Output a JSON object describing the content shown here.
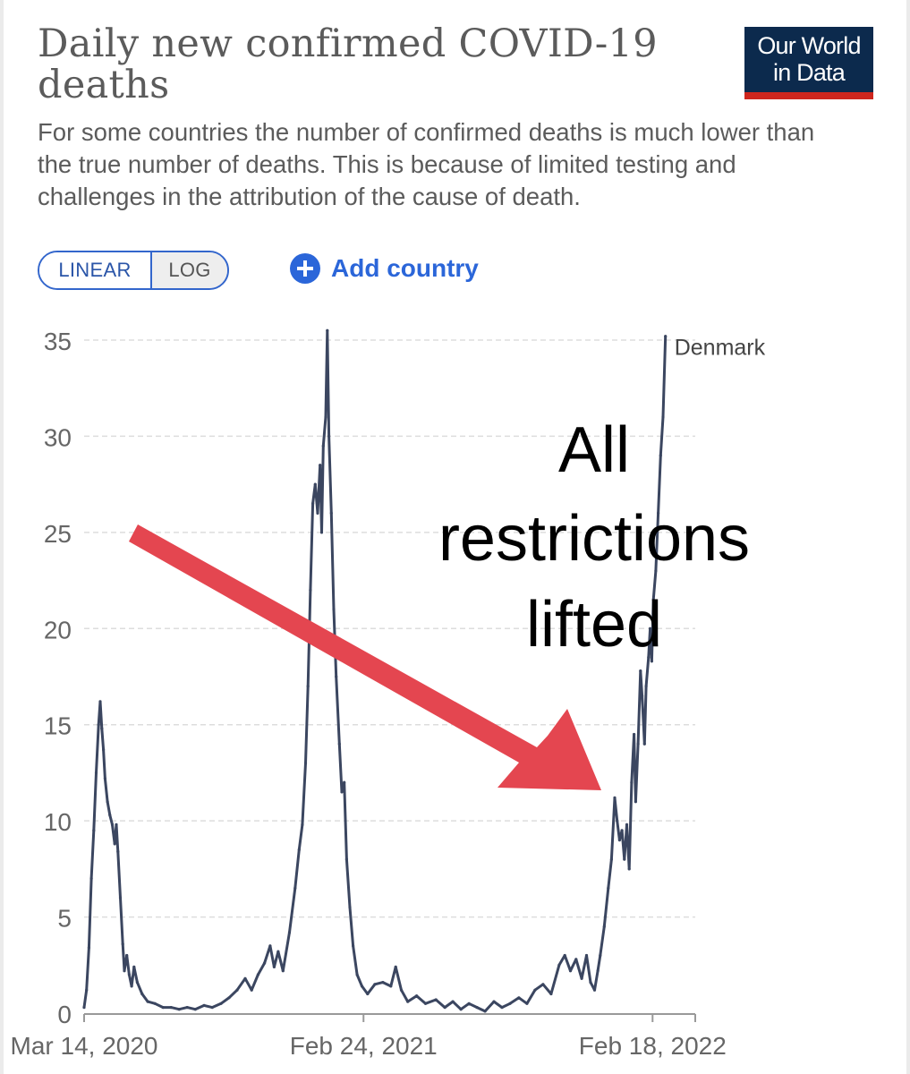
{
  "header": {
    "title": "Daily new confirmed COVID-19 deaths",
    "subtitle": "For some countries the number of confirmed deaths is much lower than the true number of deaths. This is because of limited testing and challenges in the attribution of the cause of death.",
    "logo_line1": "Our World",
    "logo_line2": "in Data"
  },
  "controls": {
    "linear_label": "LINEAR",
    "log_label": "LOG",
    "add_country_label": "Add country",
    "selected_scale": "LINEAR"
  },
  "annotation": {
    "line1": "All",
    "line2": "restrictions",
    "line3": "lifted"
  },
  "colors": {
    "series": "#3b4660",
    "arrow": "#e44650",
    "grid": "#dddddd",
    "accent": "#2b66d9",
    "logo_bg": "#0c2a4d",
    "logo_bar": "#ce261e"
  },
  "chart_data": {
    "type": "line",
    "title": "Daily new confirmed COVID-19 deaths",
    "ylim": [
      0,
      35
    ],
    "yticks": [
      0,
      5,
      10,
      15,
      20,
      25,
      30,
      35
    ],
    "xlim": [
      "2020-03-14",
      "2022-04-12"
    ],
    "xticks": [
      {
        "date": "2020-03-14",
        "label": "Mar 14, 2020"
      },
      {
        "date": "2021-02-24",
        "label": "Feb 24, 2021"
      },
      {
        "date": "2022-02-18",
        "label": "Feb 18, 2022"
      }
    ],
    "grid": true,
    "series": [
      {
        "name": "Denmark",
        "points": [
          [
            "2020-03-14",
            0.3
          ],
          [
            "2020-03-17",
            1.2
          ],
          [
            "2020-03-20",
            3.4
          ],
          [
            "2020-03-23",
            7.0
          ],
          [
            "2020-03-26",
            9.5
          ],
          [
            "2020-03-29",
            12.5
          ],
          [
            "2020-04-01",
            15.0
          ],
          [
            "2020-04-03",
            16.2
          ],
          [
            "2020-04-05",
            14.8
          ],
          [
            "2020-04-07",
            13.7
          ],
          [
            "2020-04-09",
            12.2
          ],
          [
            "2020-04-12",
            11.0
          ],
          [
            "2020-04-15",
            10.3
          ],
          [
            "2020-04-18",
            9.8
          ],
          [
            "2020-04-21",
            8.8
          ],
          [
            "2020-04-23",
            9.8
          ],
          [
            "2020-04-25",
            8.4
          ],
          [
            "2020-04-28",
            6.0
          ],
          [
            "2020-05-01",
            3.6
          ],
          [
            "2020-05-03",
            2.2
          ],
          [
            "2020-05-06",
            3.0
          ],
          [
            "2020-05-09",
            2.0
          ],
          [
            "2020-05-12",
            1.4
          ],
          [
            "2020-05-15",
            2.4
          ],
          [
            "2020-05-19",
            1.6
          ],
          [
            "2020-05-25",
            1.0
          ],
          [
            "2020-06-01",
            0.6
          ],
          [
            "2020-06-10",
            0.5
          ],
          [
            "2020-06-20",
            0.3
          ],
          [
            "2020-06-30",
            0.3
          ],
          [
            "2020-07-10",
            0.2
          ],
          [
            "2020-07-20",
            0.3
          ],
          [
            "2020-07-30",
            0.2
          ],
          [
            "2020-08-10",
            0.4
          ],
          [
            "2020-08-20",
            0.3
          ],
          [
            "2020-08-31",
            0.5
          ],
          [
            "2020-09-10",
            0.8
          ],
          [
            "2020-09-20",
            1.2
          ],
          [
            "2020-09-30",
            1.8
          ],
          [
            "2020-10-08",
            1.2
          ],
          [
            "2020-10-16",
            2.0
          ],
          [
            "2020-10-24",
            2.6
          ],
          [
            "2020-10-31",
            3.5
          ],
          [
            "2020-11-05",
            2.4
          ],
          [
            "2020-11-10",
            3.2
          ],
          [
            "2020-11-16",
            2.2
          ],
          [
            "2020-11-24",
            4.2
          ],
          [
            "2020-12-01",
            6.5
          ],
          [
            "2020-12-06",
            8.5
          ],
          [
            "2020-12-10",
            9.8
          ],
          [
            "2020-12-14",
            13.0
          ],
          [
            "2020-12-17",
            17.0
          ],
          [
            "2020-12-20",
            22.0
          ],
          [
            "2020-12-23",
            26.5
          ],
          [
            "2020-12-26",
            27.5
          ],
          [
            "2020-12-29",
            26.0
          ],
          [
            "2021-01-01",
            28.5
          ],
          [
            "2021-01-03",
            25.0
          ],
          [
            "2021-01-05",
            29.5
          ],
          [
            "2021-01-08",
            31.0
          ],
          [
            "2021-01-10",
            35.5
          ],
          [
            "2021-01-12",
            30.0
          ],
          [
            "2021-01-15",
            26.0
          ],
          [
            "2021-01-18",
            21.0
          ],
          [
            "2021-01-21",
            17.5
          ],
          [
            "2021-01-25",
            14.0
          ],
          [
            "2021-01-28",
            11.5
          ],
          [
            "2021-01-31",
            12.0
          ],
          [
            "2021-02-03",
            8.0
          ],
          [
            "2021-02-07",
            5.5
          ],
          [
            "2021-02-11",
            3.5
          ],
          [
            "2021-02-16",
            2.0
          ],
          [
            "2021-02-22",
            1.4
          ],
          [
            "2021-03-01",
            1.0
          ],
          [
            "2021-03-10",
            1.5
          ],
          [
            "2021-03-20",
            1.6
          ],
          [
            "2021-03-30",
            1.4
          ],
          [
            "2021-04-05",
            2.4
          ],
          [
            "2021-04-12",
            1.2
          ],
          [
            "2021-04-20",
            0.6
          ],
          [
            "2021-05-01",
            0.9
          ],
          [
            "2021-05-12",
            0.5
          ],
          [
            "2021-05-25",
            0.7
          ],
          [
            "2021-06-05",
            0.3
          ],
          [
            "2021-06-15",
            0.6
          ],
          [
            "2021-06-25",
            0.2
          ],
          [
            "2021-07-05",
            0.5
          ],
          [
            "2021-07-15",
            0.3
          ],
          [
            "2021-07-25",
            0.1
          ],
          [
            "2021-08-05",
            0.6
          ],
          [
            "2021-08-15",
            0.3
          ],
          [
            "2021-08-25",
            0.5
          ],
          [
            "2021-09-05",
            0.8
          ],
          [
            "2021-09-15",
            0.5
          ],
          [
            "2021-09-25",
            1.2
          ],
          [
            "2021-10-05",
            1.5
          ],
          [
            "2021-10-15",
            1.0
          ],
          [
            "2021-10-25",
            2.5
          ],
          [
            "2021-11-01",
            3.0
          ],
          [
            "2021-11-08",
            2.2
          ],
          [
            "2021-11-15",
            2.8
          ],
          [
            "2021-11-22",
            1.8
          ],
          [
            "2021-11-28",
            3.0
          ],
          [
            "2021-12-03",
            1.6
          ],
          [
            "2021-12-08",
            1.2
          ],
          [
            "2021-12-12",
            2.2
          ],
          [
            "2021-12-15",
            3.0
          ],
          [
            "2021-12-20",
            4.5
          ],
          [
            "2021-12-25",
            6.5
          ],
          [
            "2021-12-29",
            8.0
          ],
          [
            "2022-01-02",
            11.2
          ],
          [
            "2022-01-05",
            10.0
          ],
          [
            "2022-01-08",
            9.0
          ],
          [
            "2022-01-11",
            9.5
          ],
          [
            "2022-01-14",
            8.0
          ],
          [
            "2022-01-17",
            9.8
          ],
          [
            "2022-01-20",
            7.5
          ],
          [
            "2022-01-23",
            12.0
          ],
          [
            "2022-01-26",
            14.5
          ],
          [
            "2022-01-28",
            11.0
          ],
          [
            "2022-01-31",
            14.0
          ],
          [
            "2022-02-03",
            17.8
          ],
          [
            "2022-02-05",
            16.5
          ],
          [
            "2022-02-08",
            14.0
          ],
          [
            "2022-02-10",
            17.0
          ],
          [
            "2022-02-13",
            18.5
          ],
          [
            "2022-02-15",
            20.0
          ],
          [
            "2022-02-17",
            18.3
          ],
          [
            "2022-02-19",
            21.5
          ],
          [
            "2022-02-22",
            23.0
          ],
          [
            "2022-02-25",
            26.0
          ],
          [
            "2022-02-28",
            29.0
          ],
          [
            "2022-03-03",
            31.0
          ],
          [
            "2022-03-06",
            35.2
          ]
        ]
      }
    ]
  }
}
